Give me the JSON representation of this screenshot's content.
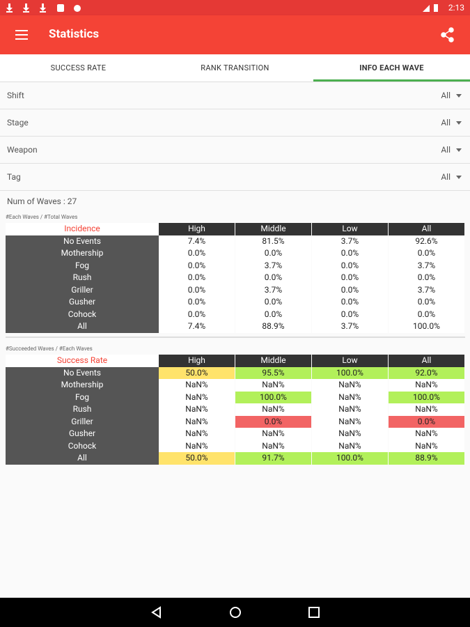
{
  "status_bar": {
    "time": "2:13"
  },
  "app_bar": {
    "title": "Statistics"
  },
  "tabs": {
    "labels": [
      "SUCCESS RATE",
      "RANK TRANSITION",
      "INFO EACH WAVE"
    ],
    "selected": 2
  },
  "filters": [
    {
      "label": "Shift",
      "value": "All"
    },
    {
      "label": "Stage",
      "value": "All"
    },
    {
      "label": "Weapon",
      "value": "All"
    },
    {
      "label": "Tag",
      "value": "All"
    }
  ],
  "summary": "Num of Waves : 27",
  "tables": [
    {
      "caption": "#Each Waves / #Total Waves",
      "corner": "Incidence",
      "columns": [
        "High",
        "Middle",
        "Low",
        "All"
      ],
      "rows": [
        {
          "label": "No Events",
          "cells": [
            "7.4%",
            "81.5%",
            "3.7%",
            "92.6%"
          ]
        },
        {
          "label": "Mothership",
          "cells": [
            "0.0%",
            "0.0%",
            "0.0%",
            "0.0%"
          ]
        },
        {
          "label": "Fog",
          "cells": [
            "0.0%",
            "3.7%",
            "0.0%",
            "3.7%"
          ]
        },
        {
          "label": "Rush",
          "cells": [
            "0.0%",
            "0.0%",
            "0.0%",
            "0.0%"
          ]
        },
        {
          "label": "Griller",
          "cells": [
            "0.0%",
            "3.7%",
            "0.0%",
            "3.7%"
          ]
        },
        {
          "label": "Gusher",
          "cells": [
            "0.0%",
            "0.0%",
            "0.0%",
            "0.0%"
          ]
        },
        {
          "label": "Cohock",
          "cells": [
            "0.0%",
            "0.0%",
            "0.0%",
            "0.0%"
          ]
        },
        {
          "label": "All",
          "cells": [
            "7.4%",
            "88.9%",
            "3.7%",
            "100.0%"
          ]
        }
      ]
    },
    {
      "caption": "#Succeeded Waves / #Each Waves",
      "corner": "Success Rate",
      "columns": [
        "High",
        "Middle",
        "Low",
        "All"
      ],
      "rows": [
        {
          "label": "No Events",
          "cells": [
            "50.0%",
            "95.5%",
            "100.0%",
            "92.0%"
          ],
          "cell_colors": [
            "#ffe36b",
            "#b2f05a",
            "#b2f05a",
            "#b2f05a"
          ]
        },
        {
          "label": "Mothership",
          "cells": [
            "NaN%",
            "NaN%",
            "NaN%",
            "NaN%"
          ]
        },
        {
          "label": "Fog",
          "cells": [
            "NaN%",
            "100.0%",
            "NaN%",
            "100.0%"
          ],
          "cell_colors": [
            null,
            "#b2f05a",
            null,
            "#b2f05a"
          ]
        },
        {
          "label": "Rush",
          "cells": [
            "NaN%",
            "NaN%",
            "NaN%",
            "NaN%"
          ]
        },
        {
          "label": "Griller",
          "cells": [
            "NaN%",
            "0.0%",
            "NaN%",
            "0.0%"
          ],
          "cell_colors": [
            null,
            "#f26464",
            null,
            "#f26464"
          ]
        },
        {
          "label": "Gusher",
          "cells": [
            "NaN%",
            "NaN%",
            "NaN%",
            "NaN%"
          ]
        },
        {
          "label": "Cohock",
          "cells": [
            "NaN%",
            "NaN%",
            "NaN%",
            "NaN%"
          ]
        },
        {
          "label": "All",
          "cells": [
            "50.0%",
            "91.7%",
            "100.0%",
            "88.9%"
          ],
          "cell_colors": [
            "#ffe36b",
            "#b2f05a",
            "#b2f05a",
            "#b2f05a"
          ]
        }
      ]
    }
  ]
}
